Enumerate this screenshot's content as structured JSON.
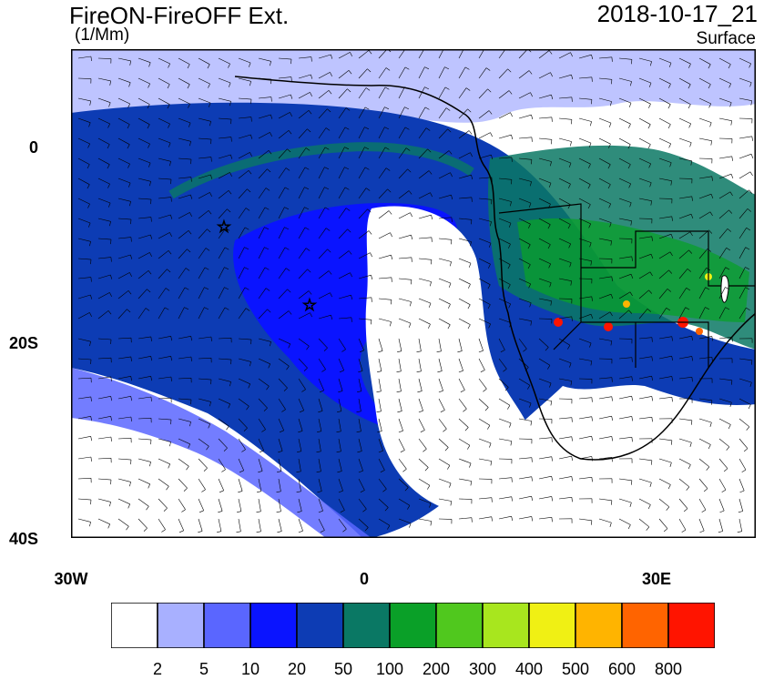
{
  "title": "FireON-FireOFF Ext.",
  "units": "(1/Mm)",
  "timestamp": "2018-10-17_21",
  "level": "Surface",
  "lat_labels": [
    "0",
    "20S",
    "40S"
  ],
  "lon_labels": [
    "30W",
    "0",
    "30E"
  ],
  "markers": [
    "star-marker",
    "star-marker"
  ],
  "colorbar": {
    "labels": [
      "2",
      "5",
      "10",
      "20",
      "50",
      "100",
      "200",
      "300",
      "400",
      "500",
      "600",
      "800"
    ],
    "colors": [
      "#ffffff",
      "#a8b0ff",
      "#5a66ff",
      "#0a14ff",
      "#0d3cb4",
      "#0a7864",
      "#0aa028",
      "#50c81e",
      "#a8e61e",
      "#f0f014",
      "#ffb400",
      "#ff6400",
      "#ff1400"
    ]
  },
  "map_colors": {
    "ocean_plume_outer": "#5a66ff",
    "ocean_plume_core": "#0d3cb4",
    "plume_inner": "#0a14ff",
    "clear": "#ffffff",
    "land_smoke": "#0a7864"
  }
}
